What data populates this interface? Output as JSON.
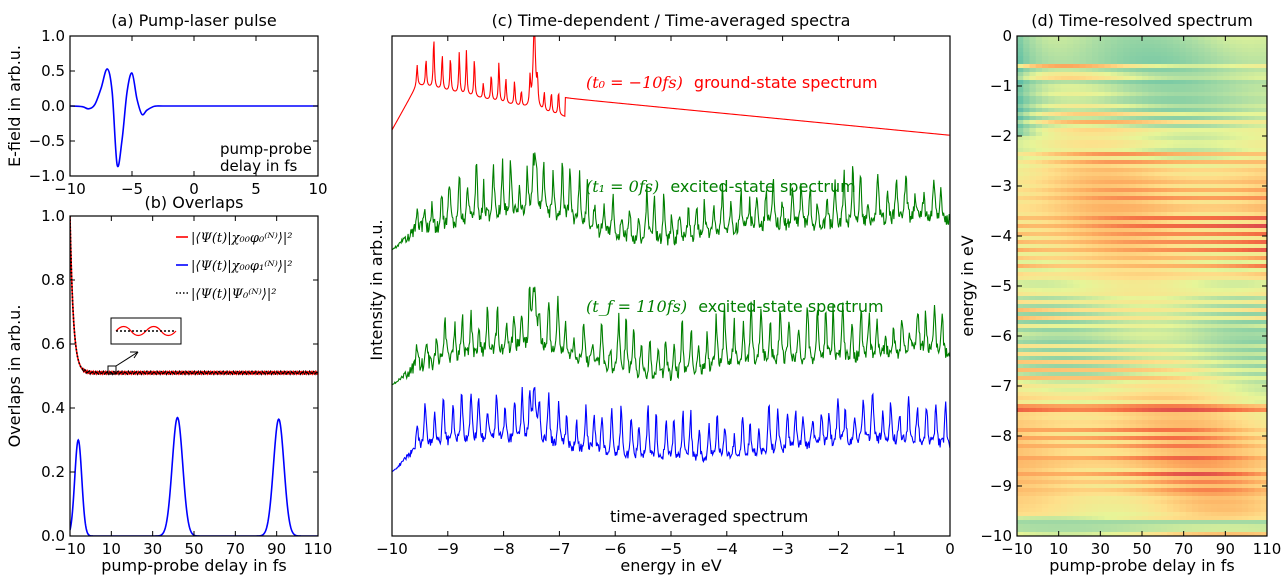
{
  "chart_data": [
    {
      "id": "a",
      "type": "line",
      "title": "(a) Pump-laser pulse",
      "xlabel": "",
      "ylabel": "E-field in arb.u.",
      "xlim": [
        -10,
        10
      ],
      "ylim": [
        -1.0,
        1.0
      ],
      "xticks": [
        -10,
        -5,
        0,
        5,
        10
      ],
      "xtick_labels": [
        "−10",
        "−5",
        "0",
        "5",
        "10"
      ],
      "yticks": [
        -1.0,
        -0.5,
        0.0,
        0.5,
        1.0
      ],
      "ytick_labels": [
        "−1.0",
        "−0.5",
        "0.0",
        "0.5",
        "1.0"
      ],
      "annotation": [
        "pump-probe",
        "delay in fs"
      ],
      "series": [
        {
          "color": "#0000ff",
          "x": [
            -10,
            -9,
            -8.5,
            -8,
            -7.5,
            -7,
            -6.6,
            -6.2,
            -5.8,
            -5.4,
            -5.0,
            -4.6,
            -4.2,
            -3.8,
            -3.3,
            -3,
            -2.5,
            0,
            5,
            10
          ],
          "y": [
            0,
            -0.01,
            -0.04,
            0.02,
            0.25,
            0.53,
            0.2,
            -0.84,
            -0.48,
            0.2,
            0.47,
            0.1,
            -0.12,
            -0.06,
            -0.01,
            0,
            0,
            0,
            0,
            0
          ]
        }
      ]
    },
    {
      "id": "b",
      "type": "line",
      "title": "(b) Overlaps",
      "xlabel": "pump-probe delay in fs",
      "ylabel": "Overlaps in arb.u.",
      "xlim": [
        -10,
        110
      ],
      "ylim": [
        0.0,
        1.0
      ],
      "xticks": [
        -10,
        10,
        30,
        50,
        70,
        90,
        110
      ],
      "xtick_labels": [
        "−10",
        "10",
        "30",
        "50",
        "70",
        "90",
        "110"
      ],
      "yticks": [
        0.0,
        0.2,
        0.4,
        0.6,
        0.8,
        1.0
      ],
      "ytick_labels": [
        "0.0",
        "0.2",
        "0.4",
        "0.6",
        "0.8",
        "1.0"
      ],
      "legend_position": "right",
      "series": [
        {
          "name": "|⟨Ψ(t)|χ₀₀φ₀⁽ᴺ⁾⟩|²",
          "color": "#ff0000",
          "style": "solid",
          "kind": "ground"
        },
        {
          "name": "|⟨Ψ(t)|χ₀₀φ₁⁽ᴺ⁾⟩|²",
          "color": "#0000ff",
          "style": "solid",
          "kind": "peaks",
          "peaks": [
            {
              "x": -6,
              "y": 0.3
            },
            {
              "x": 42,
              "y": 0.37
            },
            {
              "x": 91,
              "y": 0.365
            }
          ]
        },
        {
          "name": "|⟨Ψ(t)|Ψ₀⁽ᴺ⁾⟩|²",
          "color": "#000000",
          "style": "dotted",
          "kind": "ground"
        }
      ],
      "ground_curve": {
        "start": 1.0,
        "plateau": 0.51,
        "decay_fs": 1.6,
        "onset_fs": -10
      }
    },
    {
      "id": "c",
      "type": "line",
      "title": "(c) Time-dependent / Time-averaged spectra",
      "xlabel": "energy in eV",
      "ylabel": "Intensity in arb.u.",
      "xlim": [
        -10,
        0
      ],
      "xticks": [
        -10,
        -9,
        -8,
        -7,
        -6,
        -5,
        -4,
        -3,
        -2,
        -1,
        0
      ],
      "xtick_labels": [
        "−10",
        "−9",
        "−8",
        "−7",
        "−6",
        "−5",
        "−4",
        "−3",
        "−2",
        "−1",
        "0"
      ],
      "series": [
        {
          "name": "(t₀ = −10fs) ground-state spectrum",
          "color": "#ff0000",
          "kind": "ground"
        },
        {
          "name": "(t₁ = 0fs) excited-state spectrum",
          "color": "#007f00",
          "kind": "excited"
        },
        {
          "name": "(t_f = 110fs) excited-state spectrum",
          "color": "#007f00",
          "kind": "excited"
        },
        {
          "name": "time-averaged spectrum",
          "color": "#0000ff",
          "kind": "averaged"
        }
      ],
      "labels": [
        {
          "math": "(t₀ = −10fs)",
          "text": "ground-state spectrum",
          "color": "#ff0000"
        },
        {
          "math": "(t₁ = 0fs)",
          "text": "excited-state spectrum",
          "color": "#007f00"
        },
        {
          "math": "(t_f = 110fs)",
          "text": "excited-state spectrum",
          "color": "#007f00"
        },
        {
          "math": "",
          "text": "time-averaged spectrum",
          "color": "#0000ff"
        }
      ]
    },
    {
      "id": "d",
      "type": "heatmap",
      "title": "(d) Time-resolved spectrum",
      "xlabel": "pump-probe delay in fs",
      "ylabel": "energy in eV",
      "xlim": [
        -10,
        110
      ],
      "ylim": [
        -10,
        0
      ],
      "xticks": [
        -10,
        10,
        30,
        50,
        70,
        90,
        110
      ],
      "xtick_labels": [
        "−10",
        "10",
        "30",
        "50",
        "70",
        "90",
        "110"
      ],
      "yticks": [
        0,
        -1,
        -2,
        -3,
        -4,
        -5,
        -6,
        -7,
        -8,
        -9,
        -10
      ],
      "ytick_labels": [
        "0",
        "−1",
        "−2",
        "−3",
        "−4",
        "−5",
        "−6",
        "−7",
        "−8",
        "−9",
        "−10"
      ],
      "colormap": "Spectral_r"
    }
  ]
}
